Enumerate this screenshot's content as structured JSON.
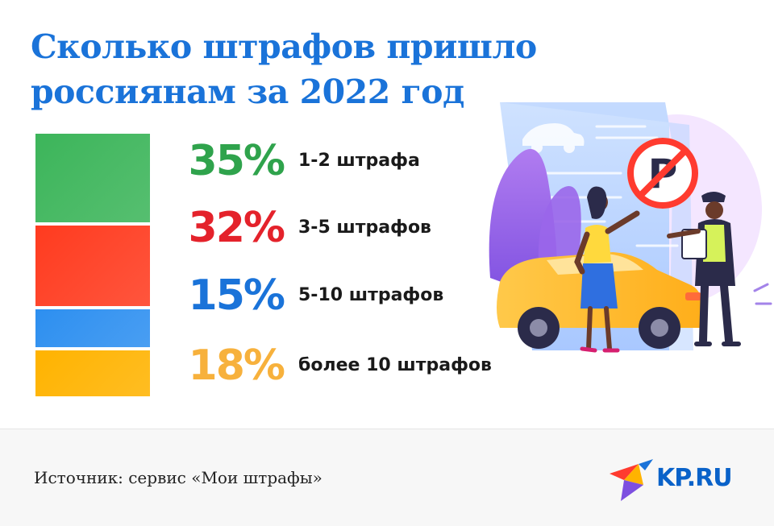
{
  "title": "Сколько штрафов пришло россиянам за 2022 год",
  "chart_data": {
    "type": "bar",
    "orientation": "stacked-vertical",
    "categories": [
      "1-2 штрафа",
      "3-5 штрафов",
      "5-10 штрафов",
      "более 10 штрафов"
    ],
    "values": [
      35,
      32,
      15,
      18
    ],
    "value_labels": [
      "35%",
      "32%",
      "15%",
      "18%"
    ],
    "unit": "%",
    "colors": [
      "#3cb55a",
      "#ff3b1f",
      "#2d8ff0",
      "#ffb300"
    ],
    "label_colors": [
      "#2fa34c",
      "#e4222b",
      "#1a73d9",
      "#f7b13c"
    ],
    "grid": false,
    "legend": "right"
  },
  "footer": {
    "source": "Источник: сервис «Мои штрафы»",
    "logo_text": "KP.RU"
  },
  "illustration": {
    "icon": "traffic-fine-illustration"
  }
}
